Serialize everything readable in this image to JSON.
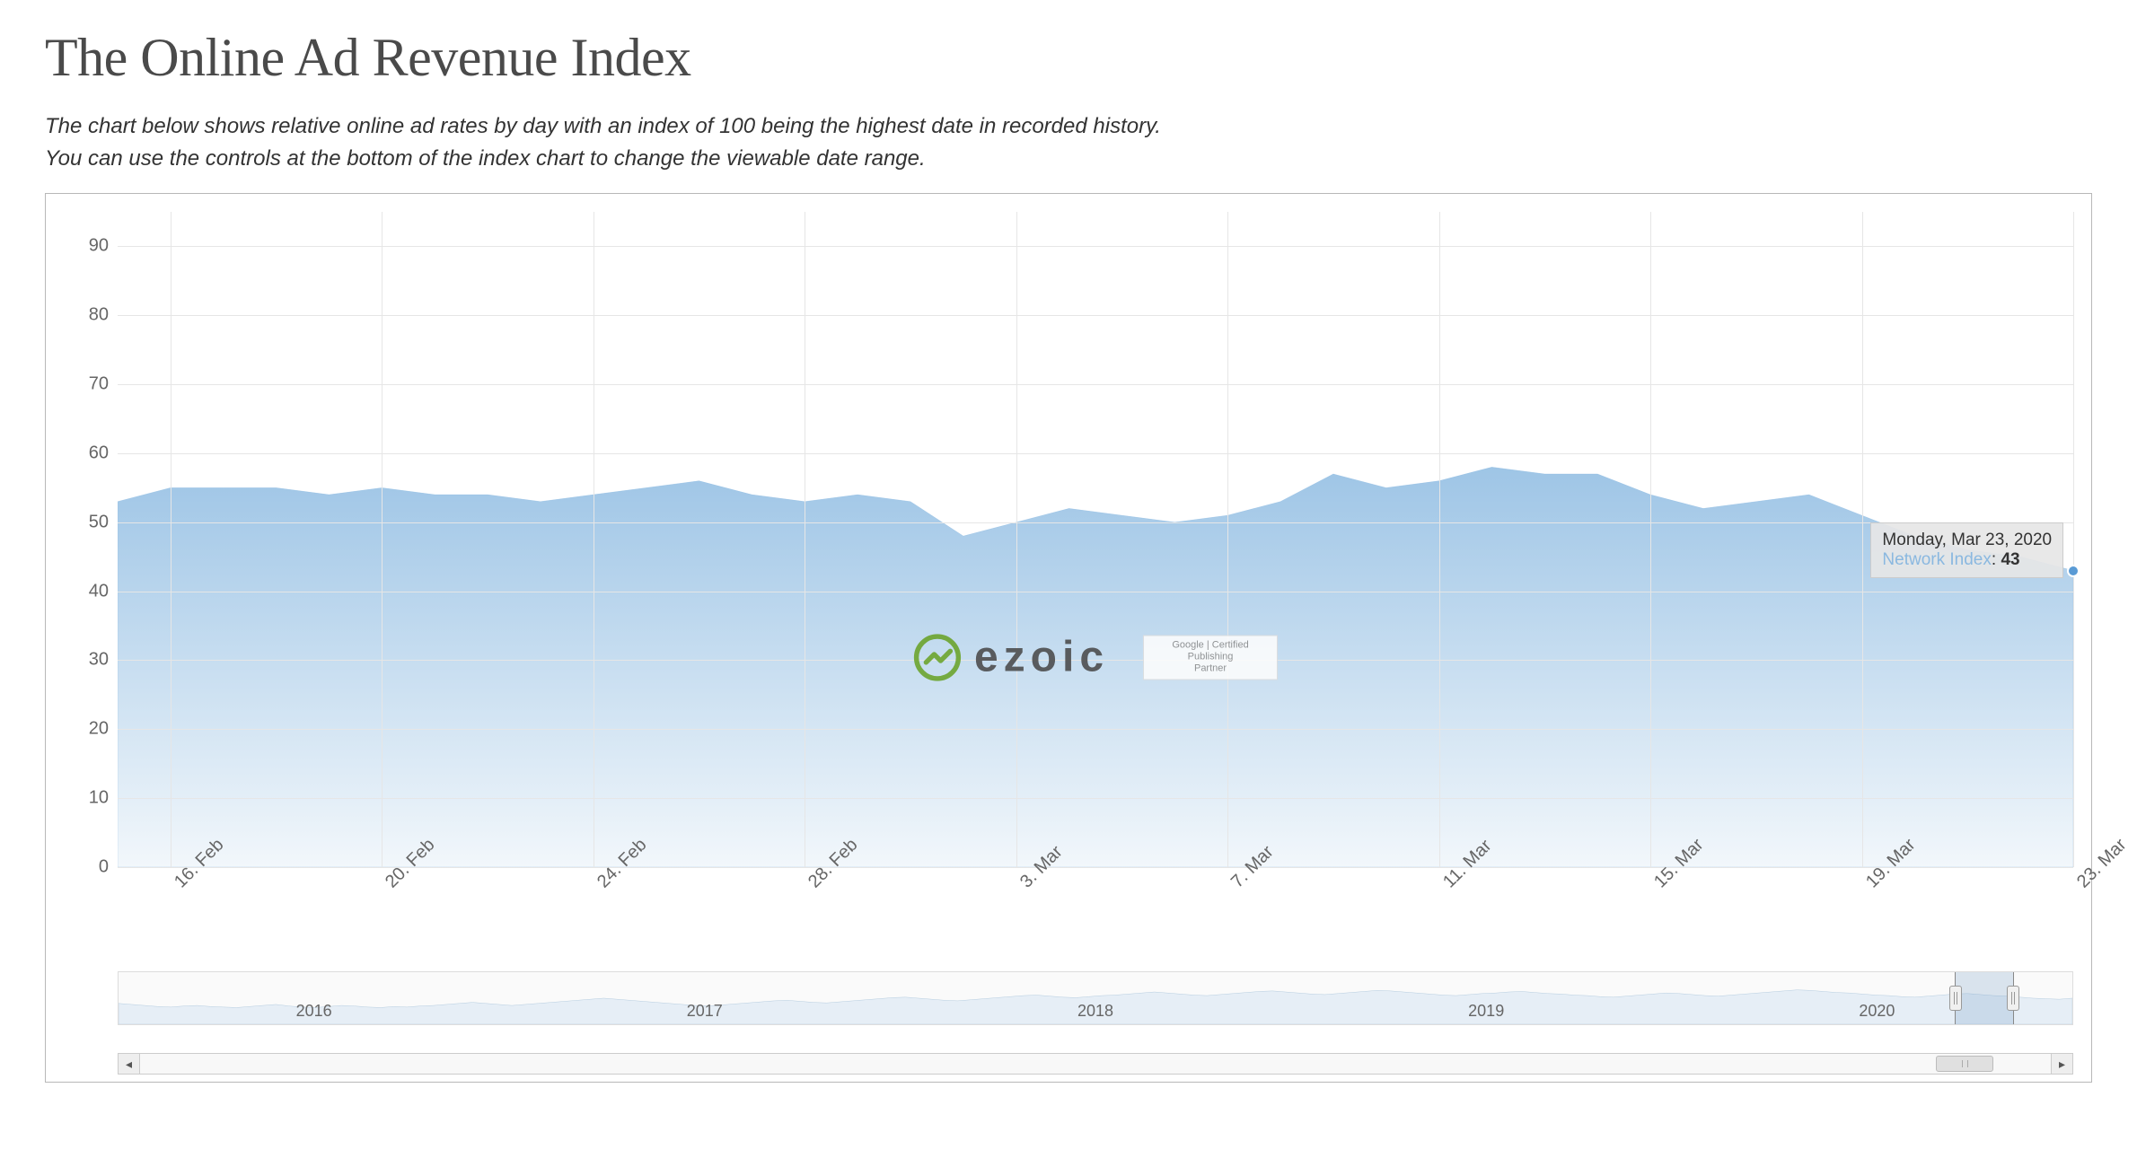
{
  "header": {
    "title": "The Online Ad Revenue Index",
    "subtitle_line1": "The chart below shows relative online ad rates by day with an index of 100 being the highest date in recorded history.",
    "subtitle_line2": "You can use the controls at the bottom of the index chart to change the viewable date range."
  },
  "chart": {
    "type": "area",
    "series_name": "Network Index",
    "fill_top_color": "#9ec5e6",
    "fill_bottom_color": "#f2f7fb",
    "line_color": "#8ab8e0",
    "line_width": 2,
    "background_color": "#ffffff",
    "grid_color": "#e6e6e6",
    "ylim": [
      0,
      95
    ],
    "ytick_step": 10,
    "yticks": [
      0,
      10,
      20,
      30,
      40,
      50,
      60,
      70,
      80,
      90
    ],
    "x_labels": [
      "16. Feb",
      "20. Feb",
      "24. Feb",
      "28. Feb",
      "3. Mar",
      "7. Mar",
      "11. Mar",
      "15. Mar",
      "19. Mar",
      "23. Mar"
    ],
    "x_label_fontsize": 20,
    "y_label_fontsize": 20,
    "x_label_rotation_deg": -45,
    "data": [
      {
        "x": 0,
        "y": 53
      },
      {
        "x": 1,
        "y": 55
      },
      {
        "x": 2,
        "y": 55
      },
      {
        "x": 3,
        "y": 55
      },
      {
        "x": 4,
        "y": 54
      },
      {
        "x": 5,
        "y": 55
      },
      {
        "x": 6,
        "y": 54
      },
      {
        "x": 7,
        "y": 54
      },
      {
        "x": 8,
        "y": 53
      },
      {
        "x": 9,
        "y": 54
      },
      {
        "x": 10,
        "y": 55
      },
      {
        "x": 11,
        "y": 56
      },
      {
        "x": 12,
        "y": 54
      },
      {
        "x": 13,
        "y": 53
      },
      {
        "x": 14,
        "y": 54
      },
      {
        "x": 15,
        "y": 53
      },
      {
        "x": 16,
        "y": 48
      },
      {
        "x": 17,
        "y": 50
      },
      {
        "x": 18,
        "y": 52
      },
      {
        "x": 19,
        "y": 51
      },
      {
        "x": 20,
        "y": 50
      },
      {
        "x": 21,
        "y": 51
      },
      {
        "x": 22,
        "y": 53
      },
      {
        "x": 23,
        "y": 57
      },
      {
        "x": 24,
        "y": 55
      },
      {
        "x": 25,
        "y": 56
      },
      {
        "x": 26,
        "y": 58
      },
      {
        "x": 27,
        "y": 57
      },
      {
        "x": 28,
        "y": 57
      },
      {
        "x": 29,
        "y": 54
      },
      {
        "x": 30,
        "y": 52
      },
      {
        "x": 31,
        "y": 53
      },
      {
        "x": 32,
        "y": 54
      },
      {
        "x": 33,
        "y": 51
      },
      {
        "x": 34,
        "y": 48
      },
      {
        "x": 35,
        "y": 46
      },
      {
        "x": 36,
        "y": 45
      },
      {
        "x": 37,
        "y": 43
      }
    ],
    "x_count": 38,
    "tooltip": {
      "date_text": "Monday, Mar 23, 2020",
      "series_label": "Network Index",
      "value": "43",
      "x_index": 37,
      "y_value": 43
    },
    "marker": {
      "x_index": 37,
      "y_value": 43,
      "color": "#5a9bd5"
    },
    "watermark": {
      "brand_text": "ezoic",
      "brand_color": "#4a4a4a",
      "icon_color": "#6aa329",
      "badge_line1": "Google | Certified",
      "badge_line2": "Publishing",
      "badge_line3": "Partner"
    }
  },
  "navigator": {
    "years": [
      "2016",
      "2017",
      "2018",
      "2019",
      "2020"
    ],
    "year_positions_pct": [
      10,
      30,
      50,
      70,
      90
    ],
    "line_color": "#b6cde0",
    "fill_color": "#e6eef6",
    "selection_start_pct": 94,
    "selection_end_pct": 97,
    "data": [
      40,
      38,
      36,
      34,
      33,
      35,
      36,
      34,
      33,
      32,
      34,
      36,
      38,
      35,
      33,
      32,
      34,
      36,
      35,
      33,
      32,
      34,
      33,
      35,
      36,
      38,
      40,
      42,
      40,
      38,
      36,
      38,
      40,
      42,
      44,
      46,
      48,
      50,
      48,
      46,
      44,
      42,
      40,
      38,
      36,
      35,
      37,
      39,
      41,
      43,
      45,
      46,
      44,
      42,
      41,
      43,
      45,
      47,
      49,
      51,
      52,
      50,
      48,
      46,
      45,
      47,
      49,
      51,
      53,
      55,
      56,
      54,
      52,
      51,
      53,
      55,
      56,
      58,
      60,
      62,
      60,
      58,
      56,
      55,
      57,
      59,
      61,
      63,
      64,
      62,
      60,
      58,
      57,
      59,
      61,
      63,
      65,
      64,
      62,
      60,
      58,
      56,
      55,
      57,
      59,
      60,
      62,
      63,
      61,
      59,
      58,
      56,
      55,
      53,
      52,
      54,
      56,
      58,
      60,
      59,
      57,
      55,
      54,
      56,
      58,
      60,
      62,
      64,
      66,
      65,
      63,
      61,
      60,
      58,
      56,
      55,
      53,
      52,
      54,
      56,
      58,
      59,
      57,
      55,
      54,
      52,
      50,
      49,
      48,
      50
    ],
    "data_ylim": [
      0,
      100
    ]
  },
  "scrollbar": {
    "thumb_start_pct": 94,
    "thumb_width_pct": 3,
    "left_arrow": "◂",
    "right_arrow": "▸"
  }
}
